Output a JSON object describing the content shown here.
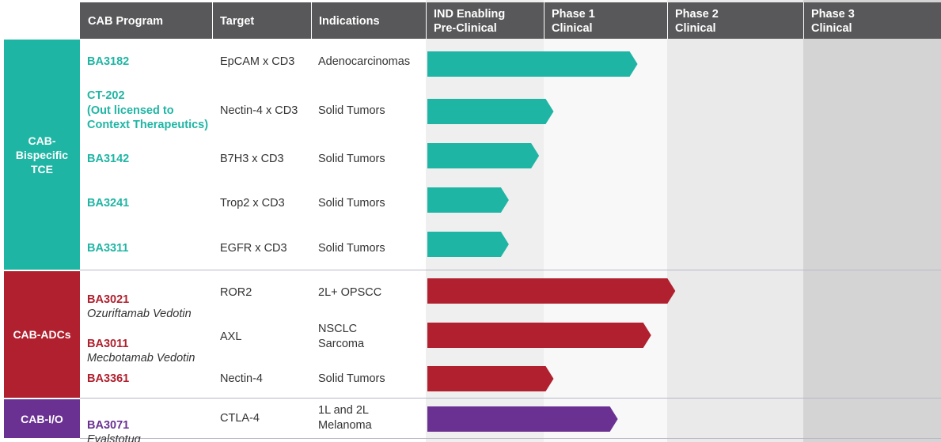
{
  "header": {
    "program": "CAB Program",
    "target": "Target",
    "indications": "Indications",
    "phases": [
      "IND Enabling\nPre-Clinical",
      "Phase 1\nClinical",
      "Phase 2\nClinical",
      "Phase 3\nClinical"
    ]
  },
  "groups": [
    {
      "label": "CAB-\nBispecific\nTCE",
      "color": "#1fb5a4"
    },
    {
      "label": "CAB-ADCs",
      "color": "#b0202e"
    },
    {
      "label": "CAB-I/O",
      "color": "#6a3192"
    }
  ],
  "rows": [
    {
      "program": "BA3182",
      "subtitle": "",
      "target": "EpCAM x CD3",
      "indications": "Adenocarcinomas",
      "group": 0
    },
    {
      "program": "CT-202\n(Out licensed to\nContext Therapeutics)",
      "subtitle": "",
      "target": "Nectin-4 x CD3",
      "indications": "Solid Tumors",
      "group": 0
    },
    {
      "program": "BA3142",
      "subtitle": "",
      "target": "B7H3 x CD3",
      "indications": "Solid Tumors",
      "group": 0
    },
    {
      "program": "BA3241",
      "subtitle": "",
      "target": "Trop2 x CD3",
      "indications": "Solid Tumors",
      "group": 0
    },
    {
      "program": "BA3311",
      "subtitle": "",
      "target": "EGFR x CD3",
      "indications": "Solid Tumors",
      "group": 0
    },
    {
      "program": "BA3021",
      "subtitle": "Ozuriftamab Vedotin",
      "target": "ROR2",
      "indications": "2L+ OPSCC",
      "group": 1
    },
    {
      "program": "BA3011",
      "subtitle": "Mecbotamab Vedotin",
      "target": "AXL",
      "indications": "NSCLC\nSarcoma",
      "group": 1
    },
    {
      "program": "BA3361",
      "subtitle": "",
      "target": "Nectin-4",
      "indications": "Solid Tumors",
      "group": 1
    },
    {
      "program": "BA3071",
      "subtitle": "Evalstotug",
      "target": "CTLA-4",
      "indications": "1L and 2L\nMelanoma",
      "group": 2
    }
  ],
  "chart_data": {
    "type": "bar",
    "orientation": "horizontal",
    "x_scale": "development stage (0 = start of IND Enabling, 1 = end of IND Enabling, 2 = end of Phase 1, 3 = end of Phase 2, 4 = end of Phase 3)",
    "xlim": [
      0,
      4
    ],
    "categories": [
      "BA3182",
      "CT-202",
      "BA3142",
      "BA3241",
      "BA3311",
      "BA3021",
      "BA3011",
      "BA3361",
      "BA3071"
    ],
    "values": [
      1.76,
      1.08,
      0.96,
      0.7,
      0.7,
      2.06,
      1.87,
      1.08,
      1.6
    ],
    "series_colors": [
      "#1fb5a4",
      "#1fb5a4",
      "#1fb5a4",
      "#1fb5a4",
      "#1fb5a4",
      "#b0202e",
      "#b0202e",
      "#b0202e",
      "#6a3192"
    ]
  }
}
